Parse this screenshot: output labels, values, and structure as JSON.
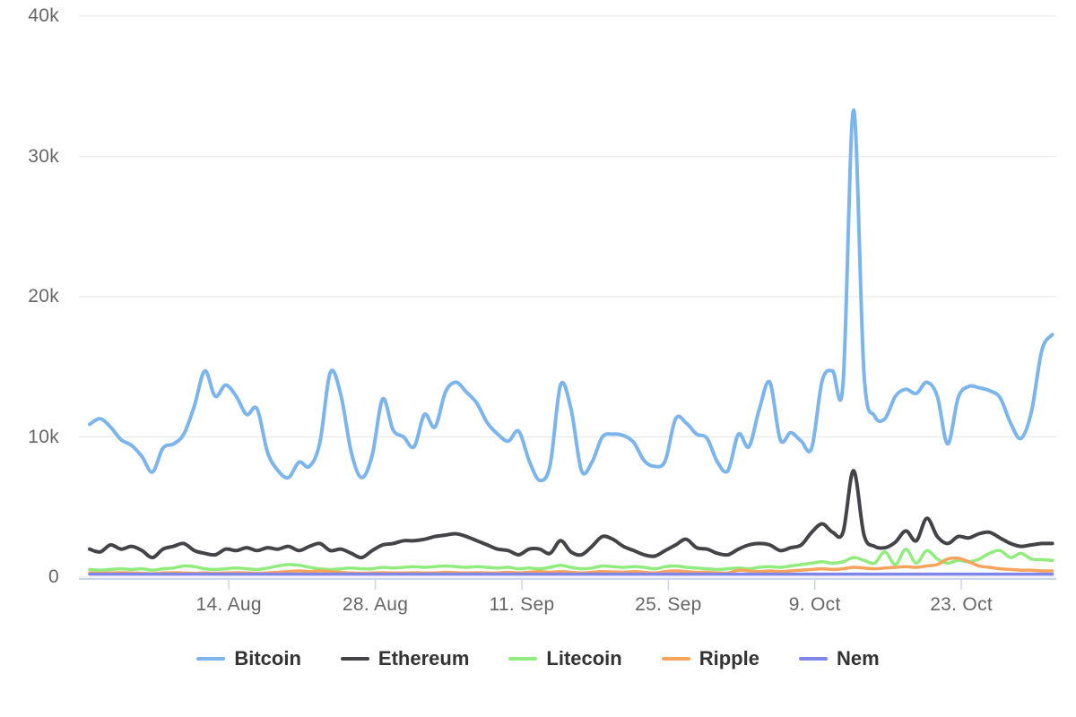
{
  "chart_data": {
    "type": "line",
    "title": "",
    "x_tick_labels": [
      "14. Aug",
      "28. Aug",
      "11. Sep",
      "25. Sep",
      "9. Oct",
      "23. Oct"
    ],
    "x_tick_day_indices": [
      13.3,
      27.3,
      41.3,
      55.3,
      69.3,
      83.3
    ],
    "y_tick_labels": [
      "40k",
      "30k",
      "20k",
      "10k",
      "0"
    ],
    "y_tick_values": [
      40000,
      30000,
      20000,
      10000,
      0
    ],
    "ylim": [
      0,
      40000
    ],
    "grid": true,
    "legend_position": "bottom",
    "grid_color": "#e6e6e6",
    "axis_line_color": "#ccd6eb",
    "label_color": "#666666",
    "legend_text_color": "#333333",
    "series": [
      {
        "name": "Bitcoin",
        "color": "#7cb5ec",
        "line_width": 4,
        "values": [
          10900,
          11300,
          10700,
          9800,
          9400,
          8600,
          7500,
          9200,
          9500,
          10200,
          12200,
          14700,
          12900,
          13700,
          12900,
          11600,
          12000,
          8900,
          7600,
          7100,
          8200,
          7900,
          9600,
          14600,
          13000,
          8900,
          7100,
          8700,
          12700,
          10500,
          10000,
          9300,
          11600,
          10700,
          13200,
          13900,
          13200,
          12400,
          11000,
          10200,
          9700,
          10400,
          8300,
          6900,
          8000,
          13700,
          12000,
          7600,
          8200,
          10000,
          10200,
          10100,
          9600,
          8300,
          7900,
          8300,
          11300,
          11000,
          10200,
          9900,
          8200,
          7600,
          10200,
          9300,
          12000,
          13900,
          9800,
          10300,
          9700,
          9200,
          14000,
          14700,
          13800,
          33300,
          14500,
          11500,
          11300,
          12900,
          13400,
          13100,
          13900,
          12900,
          9500,
          12800,
          13600,
          13500,
          13300,
          12800,
          11000,
          9900,
          11800,
          16200,
          17300
        ]
      },
      {
        "name": "Ethereum",
        "color": "#434348",
        "line_width": 4,
        "values": [
          2000,
          1800,
          2300,
          2000,
          2200,
          1900,
          1400,
          2000,
          2200,
          2400,
          1900,
          1700,
          1600,
          2000,
          1900,
          2100,
          1900,
          2100,
          2000,
          2200,
          1900,
          2200,
          2400,
          1900,
          2000,
          1700,
          1400,
          1900,
          2300,
          2400,
          2600,
          2600,
          2700,
          2900,
          3000,
          3100,
          2900,
          2600,
          2300,
          2000,
          1900,
          1600,
          2000,
          2000,
          1700,
          2600,
          1800,
          1600,
          2200,
          2900,
          2700,
          2200,
          1900,
          1600,
          1500,
          1900,
          2300,
          2700,
          2100,
          2000,
          1700,
          1600,
          2000,
          2300,
          2400,
          2300,
          1900,
          2100,
          2300,
          3200,
          3800,
          3200,
          3200,
          7600,
          3000,
          2200,
          2100,
          2500,
          3300,
          2600,
          4200,
          2900,
          2400,
          2900,
          2800,
          3100,
          3200,
          2800,
          2400,
          2200,
          2300,
          2400,
          2400
        ]
      },
      {
        "name": "Litecoin",
        "color": "#90ed7d",
        "line_width": 3.5,
        "values": [
          550,
          500,
          550,
          600,
          550,
          600,
          500,
          600,
          650,
          800,
          750,
          600,
          550,
          600,
          650,
          600,
          550,
          650,
          800,
          900,
          850,
          700,
          600,
          550,
          600,
          650,
          600,
          600,
          700,
          650,
          700,
          750,
          700,
          750,
          800,
          750,
          700,
          750,
          700,
          650,
          700,
          600,
          650,
          600,
          700,
          850,
          700,
          600,
          650,
          800,
          750,
          700,
          750,
          700,
          600,
          750,
          800,
          700,
          650,
          600,
          550,
          600,
          650,
          600,
          700,
          750,
          700,
          800,
          900,
          1000,
          1100,
          1000,
          1100,
          1400,
          1200,
          1000,
          1800,
          900,
          2000,
          1000,
          1900,
          1300,
          1000,
          1200,
          1100,
          1300,
          1700,
          1900,
          1400,
          1700,
          1300,
          1250,
          1200
        ]
      },
      {
        "name": "Ripple",
        "color": "#f7a35c",
        "line_width": 3.5,
        "values": [
          300,
          280,
          300,
          320,
          300,
          280,
          250,
          300,
          320,
          300,
          280,
          300,
          280,
          300,
          320,
          300,
          280,
          300,
          350,
          400,
          450,
          400,
          450,
          400,
          350,
          300,
          280,
          300,
          320,
          300,
          300,
          320,
          300,
          300,
          350,
          320,
          300,
          320,
          300,
          300,
          350,
          300,
          350,
          400,
          350,
          400,
          350,
          300,
          350,
          400,
          380,
          350,
          400,
          350,
          300,
          400,
          450,
          400,
          350,
          350,
          300,
          300,
          500,
          450,
          400,
          450,
          400,
          450,
          500,
          550,
          600,
          550,
          600,
          700,
          650,
          600,
          650,
          700,
          750,
          700,
          800,
          900,
          1300,
          1350,
          1100,
          800,
          700,
          600,
          550,
          500,
          500,
          450,
          450
        ]
      },
      {
        "name": "Nem",
        "color": "#8085e9",
        "line_width": 3.5,
        "values": [
          220,
          220,
          220,
          220,
          220,
          220,
          220,
          220,
          220,
          220,
          220,
          220,
          220,
          220,
          220,
          220,
          220,
          220,
          220,
          220,
          220,
          220,
          220,
          220,
          220,
          220,
          220,
          220,
          220,
          220,
          220,
          220,
          220,
          220,
          220,
          220,
          220,
          220,
          220,
          220,
          220,
          220,
          220,
          220,
          220,
          220,
          220,
          220,
          220,
          220,
          220,
          220,
          220,
          220,
          220,
          220,
          220,
          220,
          220,
          220,
          220,
          220,
          220,
          220,
          220,
          220,
          220,
          220,
          220,
          220,
          220,
          220,
          220,
          220,
          220,
          220,
          220,
          220,
          220,
          220,
          220,
          220,
          220,
          220,
          220,
          220,
          220,
          220,
          220,
          220,
          220,
          220,
          220
        ]
      }
    ]
  }
}
